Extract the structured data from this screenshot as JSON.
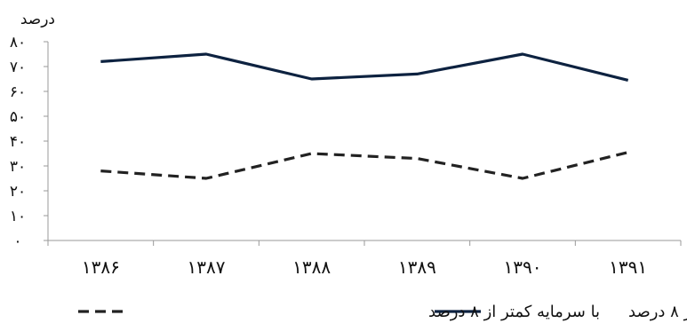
{
  "chart_data": {
    "type": "line",
    "ylabel": "درصد",
    "ylim": [
      0,
      80
    ],
    "yticks": [
      "۰",
      "۱۰",
      "۲۰",
      "۳۰",
      "۴۰",
      "۵۰",
      "۶۰",
      "۷۰",
      "۸۰"
    ],
    "categories": [
      "۱۳۸۶",
      "۱۳۸۷",
      "۱۳۸۸",
      "۱۳۸۹",
      "۱۳۹۰",
      "۱۳۹۱"
    ],
    "series": [
      {
        "name": "با سرمایه بیشتر از ۸ درصد",
        "values": [
          72,
          75,
          65,
          67,
          75,
          64.5
        ],
        "color": "#0d2240",
        "dash": "solid"
      },
      {
        "name": "با سرمایه کمتر از ۸ درصد",
        "values": [
          28,
          25,
          35,
          33,
          25,
          35.5
        ],
        "color": "#222222",
        "dash": "dashed"
      }
    ],
    "grid": false,
    "legend_position": "bottom"
  }
}
